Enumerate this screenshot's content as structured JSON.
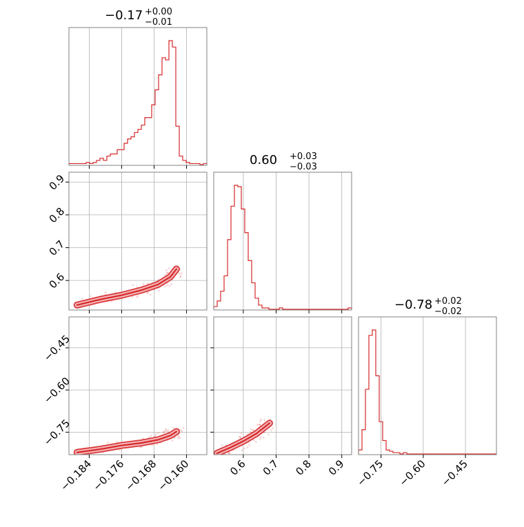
{
  "colors": {
    "series": "#d62728",
    "fill": "#f4b6b8",
    "grid": "#b0b0b0",
    "spine": "#808080"
  },
  "chart_data": {
    "type": "corner",
    "grid": true,
    "parameters": [
      {
        "title_main": "−0.17",
        "title_sup": "+0.00",
        "title_sub": "−0.01",
        "range": [
          -0.189,
          -0.155
        ],
        "ticks": [
          -0.184,
          -0.176,
          -0.168,
          -0.16
        ],
        "ticklabels": [
          "−0.184",
          "−0.176",
          "−0.168",
          "−0.160"
        ]
      },
      {
        "title_main": "0.60",
        "title_sup": "+0.03",
        "title_sub": "−0.03",
        "range": [
          0.51,
          0.93
        ],
        "ticks": [
          0.6,
          0.7,
          0.8,
          0.9
        ],
        "ticklabels": [
          "0.6",
          "0.7",
          "0.8",
          "0.9"
        ]
      },
      {
        "title_main": "−0.78",
        "title_sup": "+0.02",
        "title_sub": "−0.02",
        "range": [
          -0.83,
          -0.34
        ],
        "ticks": [
          -0.75,
          -0.6,
          -0.45
        ],
        "ticklabels": [
          "−0.75",
          "−0.60",
          "−0.45"
        ]
      }
    ],
    "histograms": [
      {
        "param": 0,
        "bin_start": -0.189,
        "bin_width": 0.00085,
        "counts": [
          1,
          1,
          1,
          1,
          1,
          2,
          1,
          2,
          4,
          6,
          4,
          8,
          10,
          10,
          14,
          14,
          20,
          24,
          26,
          30,
          33,
          37,
          44,
          44,
          56,
          70,
          84,
          100,
          98,
          116,
          110,
          36,
          8,
          4,
          2,
          1,
          1,
          1,
          0,
          1
        ]
      },
      {
        "param": 1,
        "bin_start": 0.51,
        "bin_width": 0.0105,
        "counts": [
          2,
          6,
          13,
          24,
          50,
          74,
          89,
          88,
          72,
          55,
          35,
          19,
          8,
          3,
          1,
          1,
          0,
          0,
          0,
          1,
          0,
          0,
          0,
          0,
          0,
          0,
          0,
          0,
          0,
          0,
          0,
          0,
          0,
          0,
          0,
          0,
          0,
          0,
          0,
          1
        ]
      },
      {
        "param": 2,
        "bin_start": -0.83,
        "bin_width": 0.01225,
        "counts": [
          3,
          18,
          48,
          88,
          92,
          58,
          24,
          10,
          3,
          2,
          1,
          1,
          0,
          1,
          0,
          0,
          0,
          0,
          0,
          0,
          0,
          0,
          0,
          0,
          0,
          0,
          0,
          0,
          0,
          0,
          0,
          0,
          0,
          0,
          0,
          0,
          0,
          0,
          0,
          0
        ]
      }
    ],
    "joint_ridges": [
      {
        "x_param": 0,
        "y_param": 1,
        "points": [
          [
            -0.187,
            0.525
          ],
          [
            -0.181,
            0.543
          ],
          [
            -0.176,
            0.555
          ],
          [
            -0.171,
            0.571
          ],
          [
            -0.167,
            0.588
          ],
          [
            -0.164,
            0.611
          ],
          [
            -0.1625,
            0.635
          ]
        ]
      },
      {
        "x_param": 0,
        "y_param": 2,
        "points": [
          [
            -0.187,
            -0.822
          ],
          [
            -0.181,
            -0.81
          ],
          [
            -0.176,
            -0.797
          ],
          [
            -0.171,
            -0.788
          ],
          [
            -0.167,
            -0.777
          ],
          [
            -0.164,
            -0.762
          ],
          [
            -0.1625,
            -0.748
          ]
        ]
      },
      {
        "x_param": 1,
        "y_param": 2,
        "points": [
          [
            0.52,
            -0.825
          ],
          [
            0.56,
            -0.805
          ],
          [
            0.6,
            -0.782
          ],
          [
            0.64,
            -0.755
          ],
          [
            0.68,
            -0.718
          ]
        ]
      }
    ]
  }
}
